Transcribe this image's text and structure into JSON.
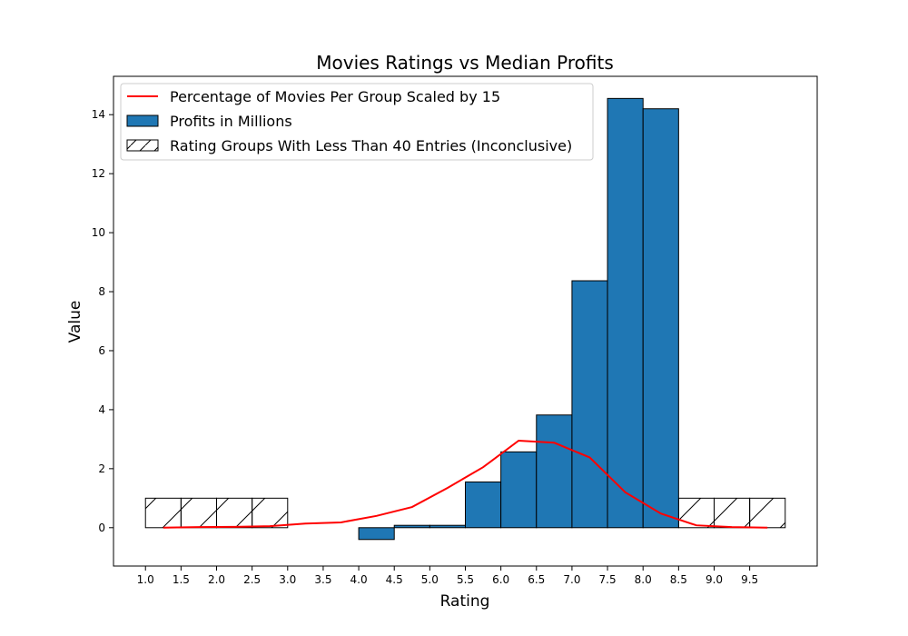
{
  "chart_data": {
    "type": "bar",
    "title": "Movies Ratings vs Median Profits",
    "xlabel": "Rating",
    "ylabel": "Value",
    "xlim": [
      0.55,
      10.45
    ],
    "ylim": [
      -1.3,
      15.3
    ],
    "x_ticks": [
      "1.0",
      "1.5",
      "2.0",
      "2.5",
      "3.0",
      "3.5",
      "4.0",
      "4.5",
      "5.0",
      "5.5",
      "6.0",
      "6.5",
      "7.0",
      "7.5",
      "8.0",
      "8.5",
      "9.0",
      "9.5"
    ],
    "x_tick_values": [
      1.0,
      1.5,
      2.0,
      2.5,
      3.0,
      3.5,
      4.0,
      4.5,
      5.0,
      5.5,
      6.0,
      6.5,
      7.0,
      7.5,
      8.0,
      8.5,
      9.0,
      9.5
    ],
    "y_ticks": [
      "0",
      "2",
      "4",
      "6",
      "8",
      "10",
      "12",
      "14"
    ],
    "y_tick_values": [
      0,
      2,
      4,
      6,
      8,
      10,
      12,
      14
    ],
    "bar_width": 0.5,
    "legend_position": "top-left",
    "grid": false,
    "series": [
      {
        "name": "Percentage of Movies Per Group Scaled by 15",
        "type": "line",
        "color": "#ff0000",
        "x": [
          1.25,
          1.75,
          2.25,
          2.75,
          3.25,
          3.75,
          4.25,
          4.75,
          5.25,
          5.75,
          6.25,
          6.75,
          7.25,
          7.75,
          8.25,
          8.75,
          9.25,
          9.75
        ],
        "values": [
          0.0,
          0.02,
          0.03,
          0.05,
          0.14,
          0.18,
          0.4,
          0.7,
          1.35,
          2.05,
          2.95,
          2.88,
          2.38,
          1.2,
          0.48,
          0.08,
          0.02,
          0.0
        ]
      },
      {
        "name": "Profits in Millions",
        "type": "bar",
        "color": "#1f77b4",
        "x": [
          4.0,
          4.5,
          5.0,
          5.5,
          6.0,
          6.5,
          7.0,
          7.5,
          8.0
        ],
        "values": [
          -0.4,
          0.08,
          0.08,
          1.55,
          2.57,
          3.82,
          8.37,
          14.55,
          14.2
        ]
      },
      {
        "name": "Rating Groups With Less Than 40 Entries (Inconclusive)",
        "type": "bar",
        "hatch": "/",
        "color": "#ffffff",
        "x": [
          1.0,
          1.5,
          2.0,
          2.5,
          8.5,
          9.0,
          9.5
        ],
        "values": [
          1,
          1,
          1,
          1,
          1,
          1,
          1
        ]
      }
    ]
  }
}
